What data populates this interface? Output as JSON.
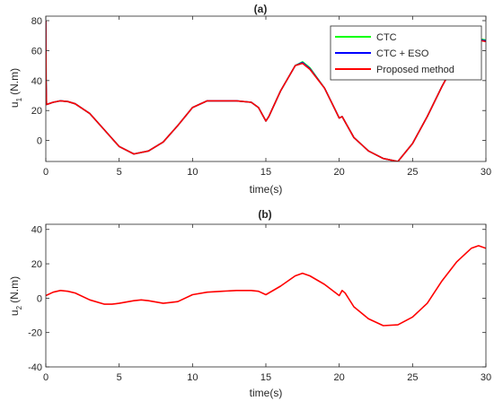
{
  "chart_data": [
    {
      "type": "line",
      "title": "(a)",
      "xlabel": "time(s)",
      "ylabel": "u",
      "ylabel_sub": "1",
      "ylabel_unit": "(N.m)",
      "xlim": [
        0,
        30
      ],
      "ylim": [
        -14,
        83
      ],
      "xticks": [
        0,
        5,
        10,
        15,
        20,
        25,
        30
      ],
      "yticks": [
        0,
        20,
        40,
        60,
        80
      ],
      "grid": false,
      "legend": "top-right",
      "series": [
        {
          "name": "CTC",
          "color": "#00ff00",
          "x": [
            0,
            0.02,
            0.05,
            0.5,
            1,
            1.5,
            2,
            3,
            4,
            5,
            6,
            7,
            8,
            9,
            10,
            11,
            12,
            13,
            14,
            14.5,
            15,
            15.2,
            16,
            17,
            17.5,
            18,
            19,
            20,
            20.2,
            21,
            22,
            23,
            24,
            25,
            26,
            27,
            28,
            29,
            29.5,
            30
          ],
          "y": [
            80,
            40,
            24,
            25.5,
            26.5,
            26,
            24.5,
            18,
            7,
            -4,
            -9,
            -7,
            -1,
            10,
            22,
            26.5,
            26.5,
            26.5,
            25.5,
            22,
            13,
            16,
            33,
            50,
            52.5,
            48.5,
            35,
            15,
            16,
            2,
            -7,
            -12,
            -14,
            -2,
            16,
            36,
            54,
            65,
            68,
            67
          ]
        },
        {
          "name": "CTC + ESO",
          "color": "#0000ff",
          "x": [
            0,
            0.02,
            0.05,
            0.5,
            1,
            1.5,
            2,
            3,
            4,
            5,
            6,
            7,
            8,
            9,
            10,
            11,
            12,
            13,
            14,
            14.5,
            15,
            15.2,
            16,
            17,
            17.5,
            18,
            19,
            20,
            20.2,
            21,
            22,
            23,
            24,
            25,
            26,
            27,
            28,
            29,
            29.5,
            30
          ],
          "y": [
            80,
            40,
            24,
            25.5,
            26.5,
            26,
            24.5,
            18,
            7,
            -4,
            -9,
            -7,
            -1,
            10,
            22,
            26.5,
            26.5,
            26.5,
            25.5,
            22,
            13,
            16,
            33,
            50,
            52,
            48,
            35,
            15,
            16,
            2,
            -7,
            -12,
            -14,
            -2,
            16,
            36,
            54,
            65,
            67.5,
            66.5
          ]
        },
        {
          "name": "Proposed method",
          "color": "#ff0000",
          "x": [
            0,
            0.02,
            0.05,
            0.5,
            1,
            1.5,
            2,
            3,
            4,
            5,
            6,
            7,
            8,
            9,
            10,
            11,
            12,
            13,
            14,
            14.5,
            15,
            15.2,
            16,
            17,
            17.5,
            18,
            19,
            20,
            20.2,
            21,
            22,
            23,
            24,
            25,
            26,
            27,
            28,
            29,
            29.5,
            30
          ],
          "y": [
            80,
            40,
            24,
            25.5,
            26.5,
            26,
            24.5,
            18,
            7,
            -4,
            -9,
            -7,
            -1,
            10,
            22,
            26.5,
            26.5,
            26.5,
            25.5,
            22,
            13,
            16,
            33,
            50,
            51.5,
            47.5,
            35,
            15,
            16,
            2,
            -7,
            -12,
            -14,
            -2,
            16,
            36,
            54,
            65,
            67,
            66
          ]
        }
      ]
    },
    {
      "type": "line",
      "title": "(b)",
      "xlabel": "time(s)",
      "ylabel": "u",
      "ylabel_sub": "2",
      "ylabel_unit": "(N.m)",
      "xlim": [
        0,
        30
      ],
      "ylim": [
        -40,
        43
      ],
      "xticks": [
        0,
        5,
        10,
        15,
        20,
        25,
        30
      ],
      "yticks": [
        -40,
        -20,
        0,
        20,
        40
      ],
      "grid": false,
      "series": [
        {
          "color": "#ff0000",
          "x": [
            0,
            0.5,
            1,
            1.5,
            2,
            3,
            4,
            4.5,
            5,
            6,
            6.5,
            7,
            8,
            8.5,
            9,
            10,
            11,
            12,
            13,
            14,
            14.5,
            15,
            16,
            17,
            17.5,
            18,
            19,
            20,
            20.2,
            20.4,
            21,
            22,
            23,
            24,
            25,
            26,
            27,
            28,
            29,
            29.5,
            30
          ],
          "y": [
            1.5,
            3.5,
            4.5,
            4,
            3,
            -1,
            -3.5,
            -3.5,
            -3,
            -1.5,
            -1,
            -1.5,
            -3,
            -2.5,
            -2,
            2,
            3.5,
            4,
            4.5,
            4.5,
            4,
            2,
            7,
            13,
            14.5,
            13,
            8,
            1.5,
            4.5,
            3,
            -5,
            -12,
            -16,
            -15.5,
            -11,
            -3,
            10,
            21,
            29,
            30.5,
            29
          ]
        }
      ]
    }
  ]
}
